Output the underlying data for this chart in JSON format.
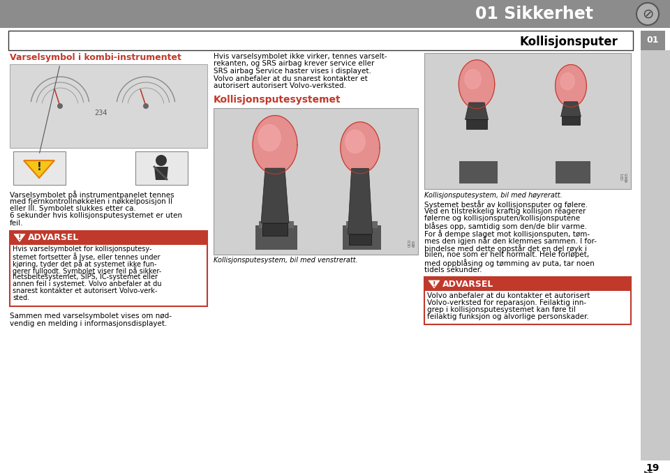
{
  "header_bg": "#8c8c8c",
  "header_text": "01 Sikkerhet",
  "header_text_color": "#ffffff",
  "subheader_text": "Kollisjonsputer",
  "page_bg": "#f5f5f5",
  "page_number": "19",
  "tab_color": "#8c8c8c",
  "tab_text": "01",
  "col1_title": "Varselsymbol i kombi-instrumentet",
  "col1_title_color": "#c0392b",
  "col1_text1": "Varselsymbolet på instrumentpanelet tennes\nmed fjernkontrollnøkkelen i nøkkelposisjon II\neller III. Symbolet slukkes etter ca.\n6 sekunder hvis kollisjonsputesystemet er uten\nfeil.",
  "col1_warning_title": "ADVARSEL",
  "col1_warning_text": "Hvis varselsymbolet for kollisjonsputesy-\nstemet fortsetter å lyse, eller tennes under\nkjøring, tyder det på at systemet ikke fun-\ngerer fullgodt. Symbolet viser feil på sikker-\nhetsbeltesystemet, SIPS, IC-systemet eller\nannen feil i systemet. Volvo anbefaler at du\nsnarest kontakter et autorisert Volvo-verk-\nsted.",
  "col1_bottom_text": "Sammen med varselsymbolet vises om nød-\nvendig en melding i informasjonsdisplayet.",
  "col2_intro_text_line1": "Hvis varselsymbolet ikke virker, tennes varselt-",
  "col2_intro_text_line2": "rekanten, og ",
  "col2_intro_text_bold2": "SRS airbag krever service",
  "col2_intro_text_rest2": " eller",
  "col2_intro_text_line3_bold": "SRS airbag Service haster",
  "col2_intro_text_line3_rest": " vises i displayet.",
  "col2_intro_text_line4": "Volvo anbefaler at du snarest kontakter et",
  "col2_intro_text_line5": "autorisert autorisert Volvo-verksted.",
  "col2_section_title": "Kollisjonsputesystemet",
  "col2_section_color": "#c0392b",
  "col2_img_caption": "Kollisjonsputesystem, bil med venstreratt.",
  "col3_img_caption": "Kollisjonsputesystem, bil med høyreratt.",
  "col3_text": "Systemet består av kollisjonsputer og følere.\nVed en tilstrekkelig kraftig kollisjon reagerer\nfølerne og kollisjonsputen/kollisjonsputene\nblåses opp, samtidig som den/de blir varme.\nFor å dempe slaget mot kollisjonsputen, tøm-\nmes den igjen når den klemmes sammen. I for-\nbindelse med dette oppstår det en del røyk i\nbilen, noe som er helt normalt. Hele forløpet,\nmed oppblåsing og tømming av puta, tar noen\ntidels sekunder.",
  "col3_warning_title": "ADVARSEL",
  "col3_warning_text": "Volvo anbefaler at du kontakter et autorisert\nVolvo-verksted for reparasjon. Feilaktig inn-\ngrep i kollisjonsputesystemet kan føre til\nfeilaktig funksjon og alvorlige personskader.",
  "warning_bg": "#c0392b",
  "gray_bg": "#d0d0d0"
}
